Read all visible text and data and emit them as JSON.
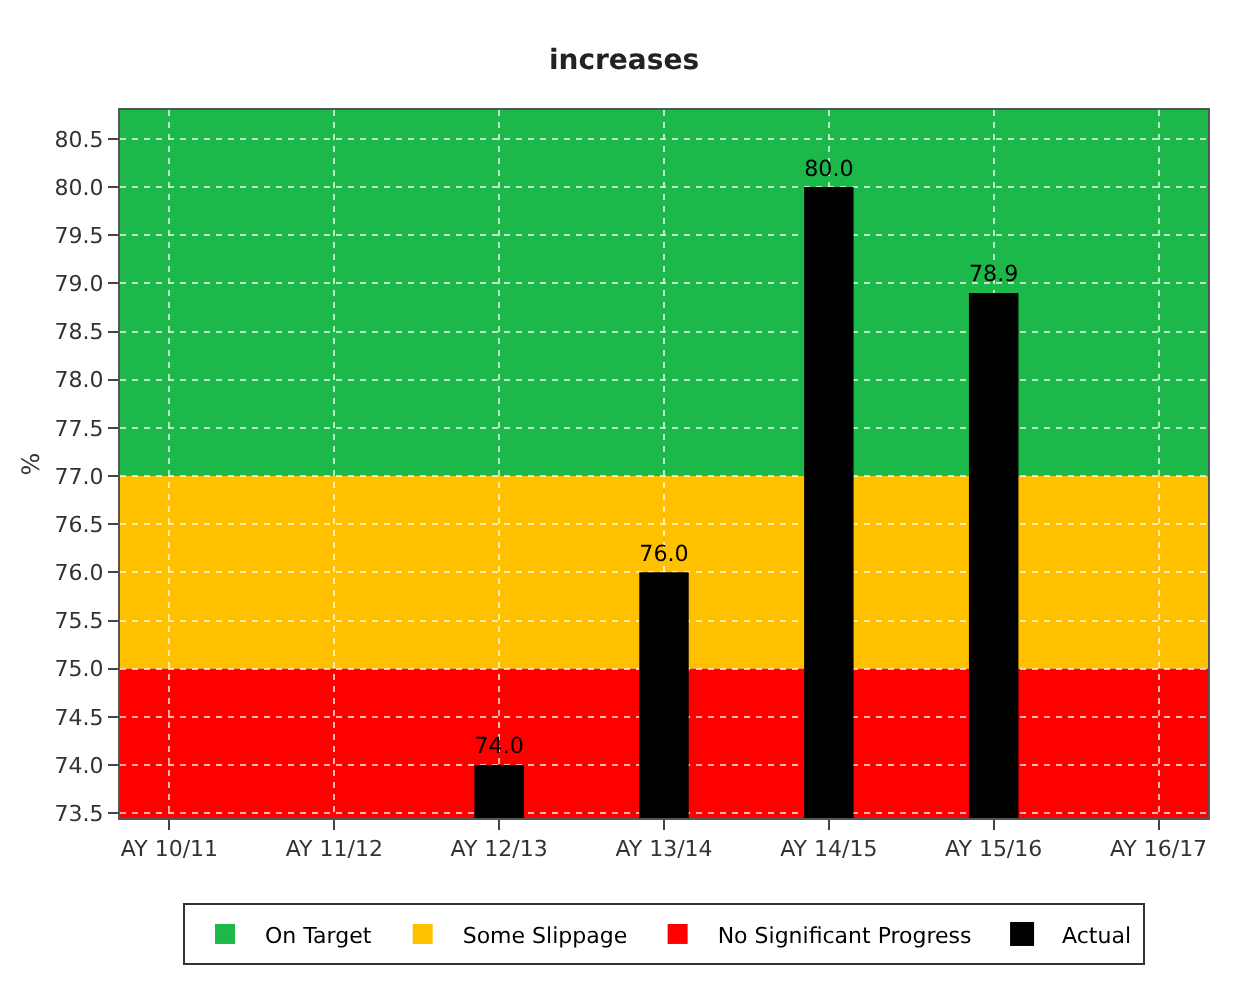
{
  "chart_data": {
    "type": "bar",
    "title": "increases",
    "ylabel": "%",
    "categories": [
      "AY 10/11",
      "AY 11/12",
      "AY 12/13",
      "AY 13/14",
      "AY 14/15",
      "AY 15/16",
      "AY 16/17"
    ],
    "series": [
      {
        "name": "Actual",
        "color": "#000000",
        "values": [
          null,
          null,
          74.0,
          76.0,
          80.0,
          78.9,
          null
        ],
        "value_labels": [
          null,
          null,
          "74.0",
          "76.0",
          "80.0",
          "78.9",
          null
        ]
      }
    ],
    "bands": [
      {
        "axis": "y",
        "from": 77,
        "to": 80.8,
        "label": "On Target",
        "color": "#1db84a"
      },
      {
        "axis": "y",
        "from": 75,
        "to": 77,
        "label": "Some Slippage",
        "color": "#ffc000"
      },
      {
        "axis": "y",
        "from": 73.45,
        "to": 75,
        "label": "No Significant Progress",
        "color": "#ff0000"
      }
    ],
    "ylim": [
      73.45,
      80.8
    ],
    "yticks": [
      {
        "value": 73.5,
        "label": "73.5"
      },
      {
        "value": 74,
        "label": "74.0"
      },
      {
        "value": 74.5,
        "label": "74.5"
      },
      {
        "value": 75,
        "label": "75.0"
      },
      {
        "value": 75.5,
        "label": "75.5"
      },
      {
        "value": 76,
        "label": "76.0"
      },
      {
        "value": 76.5,
        "label": "76.5"
      },
      {
        "value": 77,
        "label": "77.0"
      },
      {
        "value": 77.5,
        "label": "77.5"
      },
      {
        "value": 78,
        "label": "78.0"
      },
      {
        "value": 78.5,
        "label": "78.5"
      },
      {
        "value": 79,
        "label": "79.0"
      },
      {
        "value": 79.5,
        "label": "79.5"
      },
      {
        "value": 80,
        "label": "80.0"
      },
      {
        "value": 80.5,
        "label": "80.5"
      }
    ],
    "grid": true,
    "legend": "bottom"
  }
}
